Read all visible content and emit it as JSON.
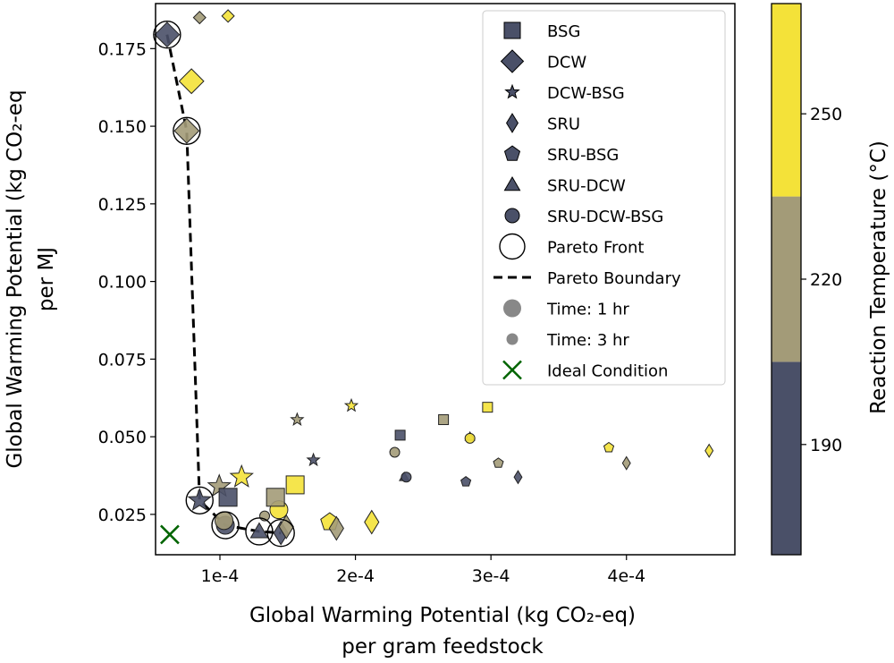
{
  "chart_data": {
    "type": "scatter",
    "xlabel_lines": [
      "Global Warming Potential (kg CO₂-eq)",
      "per gram feedstock"
    ],
    "ylabel_lines": [
      "Global Warming Potential (kg CO₂-eq",
      "per MJ"
    ],
    "xlim": [
      5.25e-05,
      0.00048
    ],
    "ylim": [
      0.012,
      0.1895
    ],
    "x_ticks": [
      {
        "value": 0.0001,
        "label": "1e-4"
      },
      {
        "value": 0.0002,
        "label": "2e-4"
      },
      {
        "value": 0.0003,
        "label": "3e-4"
      },
      {
        "value": 0.0004,
        "label": "4e-4"
      }
    ],
    "y_ticks": [
      {
        "value": 0.025,
        "label": "0.025"
      },
      {
        "value": 0.05,
        "label": "0.050"
      },
      {
        "value": 0.075,
        "label": "0.075"
      },
      {
        "value": 0.1,
        "label": "0.100"
      },
      {
        "value": 0.125,
        "label": "0.125"
      },
      {
        "value": 0.15,
        "label": "0.150"
      },
      {
        "value": 0.175,
        "label": "0.175"
      }
    ],
    "grid": false,
    "legend_position": "top-right",
    "colorbar": {
      "label": "Reaction Temperature (°C)",
      "range": [
        170,
        270
      ],
      "levels": [
        {
          "from": 170,
          "to": 205,
          "color": "#4a5068"
        },
        {
          "from": 205,
          "to": 235,
          "color": "#a39b78"
        },
        {
          "from": 235,
          "to": 270,
          "color": "#f4e239"
        }
      ],
      "ticks": [
        {
          "value": 190,
          "label": "190"
        },
        {
          "value": 220,
          "label": "220"
        },
        {
          "value": 250,
          "label": "250"
        }
      ]
    },
    "temperature_colors": {
      "190": "#4a5068",
      "220": "#a39b78",
      "250": "#f4e239"
    },
    "legend": [
      {
        "label": "BSG",
        "marker": "square"
      },
      {
        "label": "DCW",
        "marker": "diamond-large"
      },
      {
        "label": "DCW-BSG",
        "marker": "star"
      },
      {
        "label": "SRU",
        "marker": "thin-diamond"
      },
      {
        "label": "SRU-BSG",
        "marker": "pentagon"
      },
      {
        "label": "SRU-DCW",
        "marker": "triangle"
      },
      {
        "label": "SRU-DCW-BSG",
        "marker": "circle"
      },
      {
        "label": "Pareto Front",
        "marker": "open-circle"
      },
      {
        "label": "Pareto Boundary",
        "marker": "dashed-line"
      },
      {
        "label": "Time: 1 hr",
        "marker": "big-gray-circle"
      },
      {
        "label": "Time: 3 hr",
        "marker": "small-gray-circle"
      },
      {
        "label": "Ideal Condition",
        "marker": "green-x"
      }
    ],
    "ideal_point": {
      "x": 6.3e-05,
      "y": 0.0185,
      "color": "#006400"
    },
    "pareto_boundary": [
      {
        "x": 6.1e-05,
        "y": 0.1795
      },
      {
        "x": 7.55e-05,
        "y": 0.1485
      },
      {
        "x": 8.5e-05,
        "y": 0.0295
      },
      {
        "x": 0.000104,
        "y": 0.0215
      },
      {
        "x": 0.000129,
        "y": 0.0195
      },
      {
        "x": 0.000145,
        "y": 0.019
      }
    ],
    "pareto_front": [
      {
        "x": 6.1e-05,
        "y": 0.1795
      },
      {
        "x": 7.55e-05,
        "y": 0.1485
      },
      {
        "x": 8.5e-05,
        "y": 0.0295
      },
      {
        "x": 0.000104,
        "y": 0.0215
      },
      {
        "x": 0.000129,
        "y": 0.0195
      },
      {
        "x": 0.000145,
        "y": 0.019
      }
    ],
    "points": [
      {
        "x": 6.1e-05,
        "y": 0.1795,
        "feedstock": "DCW",
        "temp": 190,
        "time": 1
      },
      {
        "x": 7.55e-05,
        "y": 0.1485,
        "feedstock": "DCW",
        "temp": 220,
        "time": 1
      },
      {
        "x": 7.9e-05,
        "y": 0.1645,
        "feedstock": "DCW",
        "temp": 250,
        "time": 1
      },
      {
        "x": 8.5e-05,
        "y": 0.185,
        "feedstock": "DCW",
        "temp": 220,
        "time": 3
      },
      {
        "x": 0.000106,
        "y": 0.1855,
        "feedstock": "DCW",
        "temp": 250,
        "time": 3
      },
      {
        "x": 8.5e-05,
        "y": 0.0295,
        "feedstock": "DCW-BSG",
        "temp": 190,
        "time": 1
      },
      {
        "x": 9.95e-05,
        "y": 0.034,
        "feedstock": "DCW-BSG",
        "temp": 220,
        "time": 1
      },
      {
        "x": 0.000116,
        "y": 0.037,
        "feedstock": "DCW-BSG",
        "temp": 250,
        "time": 1
      },
      {
        "x": 0.000157,
        "y": 0.0555,
        "feedstock": "DCW-BSG",
        "temp": 220,
        "time": 3
      },
      {
        "x": 0.000169,
        "y": 0.0425,
        "feedstock": "DCW-BSG",
        "temp": 190,
        "time": 3
      },
      {
        "x": 0.000197,
        "y": 0.06,
        "feedstock": "DCW-BSG",
        "temp": 250,
        "time": 3
      },
      {
        "x": 0.000104,
        "y": 0.0215,
        "feedstock": "SRU-DCW-BSG",
        "temp": 190,
        "time": 1
      },
      {
        "x": 0.000103,
        "y": 0.023,
        "feedstock": "SRU-DCW-BSG",
        "temp": 220,
        "time": 1
      },
      {
        "x": 0.000129,
        "y": 0.0195,
        "feedstock": "SRU-DCW",
        "temp": 190,
        "time": 1
      },
      {
        "x": 0.000133,
        "y": 0.0245,
        "feedstock": "SRU-DCW-BSG",
        "temp": 220,
        "time": 3
      },
      {
        "x": 0.0001435,
        "y": 0.0265,
        "feedstock": "SRU-DCW-BSG",
        "temp": 250,
        "time": 1
      },
      {
        "x": 0.000145,
        "y": 0.019,
        "feedstock": "SRU",
        "temp": 190,
        "time": 1
      },
      {
        "x": 0.000149,
        "y": 0.021,
        "feedstock": "SRU",
        "temp": 220,
        "time": 1
      },
      {
        "x": 0.000106,
        "y": 0.0305,
        "feedstock": "BSG",
        "temp": 190,
        "time": 1
      },
      {
        "x": 0.000141,
        "y": 0.0305,
        "feedstock": "BSG",
        "temp": 220,
        "time": 1
      },
      {
        "x": 0.0001555,
        "y": 0.0345,
        "feedstock": "BSG",
        "temp": 250,
        "time": 1
      },
      {
        "x": 0.000181,
        "y": 0.0225,
        "feedstock": "SRU-BSG",
        "temp": 250,
        "time": 1
      },
      {
        "x": 0.000186,
        "y": 0.0205,
        "feedstock": "SRU",
        "temp": 220,
        "time": 1
      },
      {
        "x": 0.000212,
        "y": 0.0225,
        "feedstock": "SRU",
        "temp": 250,
        "time": 1
      },
      {
        "x": 0.000233,
        "y": 0.0505,
        "feedstock": "BSG",
        "temp": 190,
        "time": 3
      },
      {
        "x": 0.000265,
        "y": 0.0555,
        "feedstock": "BSG",
        "temp": 220,
        "time": 3
      },
      {
        "x": 0.0002975,
        "y": 0.0595,
        "feedstock": "BSG",
        "temp": 250,
        "time": 3
      },
      {
        "x": 0.000229,
        "y": 0.045,
        "feedstock": "SRU-DCW-BSG",
        "temp": 220,
        "time": 3
      },
      {
        "x": 0.000236,
        "y": 0.037,
        "feedstock": "SRU-DCW",
        "temp": 190,
        "time": 3
      },
      {
        "x": 0.0002375,
        "y": 0.037,
        "feedstock": "SRU-DCW-BSG",
        "temp": 190,
        "time": 3
      },
      {
        "x": 0.0002845,
        "y": 0.05,
        "feedstock": "SRU-DCW",
        "temp": 220,
        "time": 3
      },
      {
        "x": 0.0002845,
        "y": 0.0495,
        "feedstock": "SRU-DCW-BSG",
        "temp": 250,
        "time": 3
      },
      {
        "x": 0.0002815,
        "y": 0.0355,
        "feedstock": "SRU-BSG",
        "temp": 190,
        "time": 3
      },
      {
        "x": 0.0003055,
        "y": 0.0415,
        "feedstock": "SRU-BSG",
        "temp": 220,
        "time": 3
      },
      {
        "x": 0.00032,
        "y": 0.037,
        "feedstock": "SRU",
        "temp": 190,
        "time": 3
      },
      {
        "x": 0.000387,
        "y": 0.0465,
        "feedstock": "SRU-BSG",
        "temp": 250,
        "time": 3
      },
      {
        "x": 0.0004,
        "y": 0.0415,
        "feedstock": "SRU",
        "temp": 220,
        "time": 3
      },
      {
        "x": 0.000461,
        "y": 0.0455,
        "feedstock": "SRU",
        "temp": 250,
        "time": 3
      }
    ]
  }
}
